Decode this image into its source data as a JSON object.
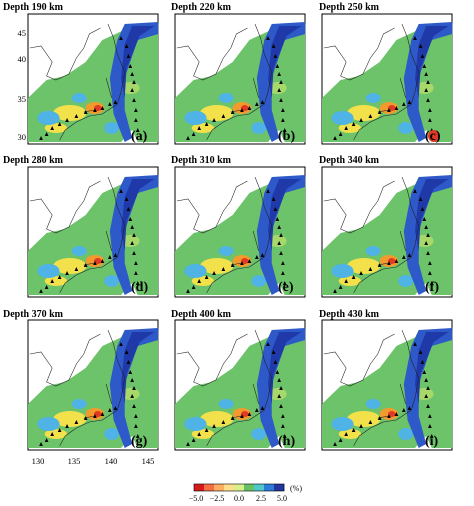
{
  "panels": [
    {
      "title": "Depth 190 km",
      "letter": "(a)"
    },
    {
      "title": "Depth 220 km",
      "letter": "(b)"
    },
    {
      "title": "Depth 250 km",
      "letter": "(c)"
    },
    {
      "title": "Depth 280 km",
      "letter": "(d)"
    },
    {
      "title": "Depth 310 km",
      "letter": "(e)"
    },
    {
      "title": "Depth 340 km",
      "letter": "(f)"
    },
    {
      "title": "Depth 370 km",
      "letter": "(g)"
    },
    {
      "title": "Depth 400 km",
      "letter": "(h)"
    },
    {
      "title": "Depth 430 km",
      "letter": "(i)"
    }
  ],
  "axes": {
    "lon_ticks": [
      "130",
      "135",
      "140",
      "145"
    ],
    "lat_ticks": [
      "30",
      "35",
      "40",
      "45"
    ]
  },
  "colorbar": {
    "ticks": [
      "−5.0",
      "−2.5",
      "0.0",
      "2.5",
      "5.0"
    ],
    "unit": "(%)",
    "colors": [
      "#d7191c",
      "#f46d43",
      "#fdae61",
      "#fee08b",
      "#d9ef8b",
      "#66c164",
      "#4dc9c9",
      "#2c7bd6",
      "#23369e"
    ]
  },
  "map_colors": {
    "background_green": "#6cc36a",
    "slab_blue": "#2e59c8",
    "deep_blue": "#1f3aa8",
    "light_blue": "#4fb3e6",
    "yellow": "#f2e14a",
    "orange": "#f39a2e",
    "red": "#e03a24"
  }
}
